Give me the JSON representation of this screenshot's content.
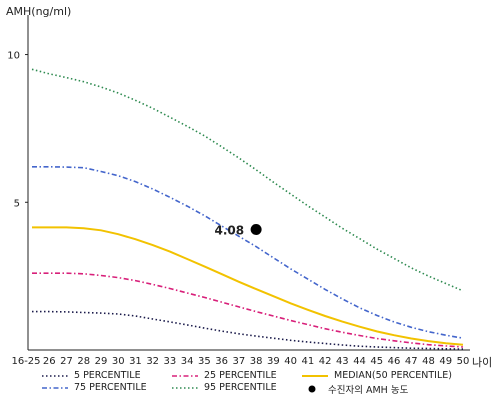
{
  "chart_data": {
    "type": "line",
    "title": "",
    "ylabel": "AMH(ng/ml)",
    "xlabel": "나이",
    "categories": [
      "16-25",
      "26",
      "27",
      "28",
      "29",
      "30",
      "31",
      "32",
      "33",
      "34",
      "35",
      "36",
      "37",
      "38",
      "39",
      "40",
      "41",
      "42",
      "43",
      "44",
      "45",
      "46",
      "47",
      "48",
      "49",
      "50"
    ],
    "ylim": [
      0,
      11
    ],
    "yticks": [
      5,
      10
    ],
    "yticks_labels": [
      "5",
      "10"
    ],
    "grid": false,
    "legend_position": "bottom",
    "series": [
      {
        "name": "5 PERCENTILE",
        "color": "#1a1a4a",
        "style": "dotted",
        "values": [
          1.3,
          1.3,
          1.29,
          1.27,
          1.25,
          1.22,
          1.15,
          1.05,
          0.95,
          0.85,
          0.74,
          0.64,
          0.55,
          0.47,
          0.4,
          0.33,
          0.27,
          0.22,
          0.17,
          0.13,
          0.1,
          0.08,
          0.06,
          0.05,
          0.04,
          0.03
        ]
      },
      {
        "name": "75 PERCENTILE",
        "color": "#4466cc",
        "style": "dashdot",
        "values": [
          6.2,
          6.2,
          6.19,
          6.17,
          6.04,
          5.9,
          5.7,
          5.45,
          5.17,
          4.87,
          4.55,
          4.2,
          3.85,
          3.5,
          3.12,
          2.75,
          2.4,
          2.05,
          1.73,
          1.43,
          1.17,
          0.95,
          0.77,
          0.62,
          0.5,
          0.4
        ]
      },
      {
        "name": "25 PERCENTILE",
        "color": "#d8207a",
        "style": "dashdot",
        "values": [
          2.6,
          2.6,
          2.6,
          2.58,
          2.52,
          2.45,
          2.35,
          2.22,
          2.08,
          1.93,
          1.78,
          1.62,
          1.46,
          1.3,
          1.15,
          1.0,
          0.86,
          0.72,
          0.6,
          0.49,
          0.39,
          0.31,
          0.24,
          0.18,
          0.14,
          0.1
        ]
      },
      {
        "name": "95 PERCENTILE",
        "color": "#2e8a50",
        "style": "dotted",
        "values": [
          9.5,
          9.35,
          9.22,
          9.08,
          8.9,
          8.7,
          8.45,
          8.18,
          7.88,
          7.57,
          7.25,
          6.88,
          6.5,
          6.1,
          5.68,
          5.28,
          4.88,
          4.5,
          4.12,
          3.77,
          3.42,
          3.1,
          2.78,
          2.5,
          2.25,
          2.0
        ]
      },
      {
        "name": "MEDIAN(50 PERCENTILE)",
        "color": "#f2c200",
        "style": "solid",
        "values": [
          4.15,
          4.15,
          4.15,
          4.12,
          4.05,
          3.92,
          3.75,
          3.55,
          3.33,
          3.08,
          2.83,
          2.57,
          2.31,
          2.06,
          1.82,
          1.58,
          1.36,
          1.15,
          0.96,
          0.79,
          0.63,
          0.5,
          0.39,
          0.3,
          0.23,
          0.18
        ]
      }
    ],
    "marker": {
      "name": "수진자의 AMH 농도",
      "x": "38",
      "y": 4.08,
      "label": "4.08",
      "color": "#000000"
    }
  }
}
